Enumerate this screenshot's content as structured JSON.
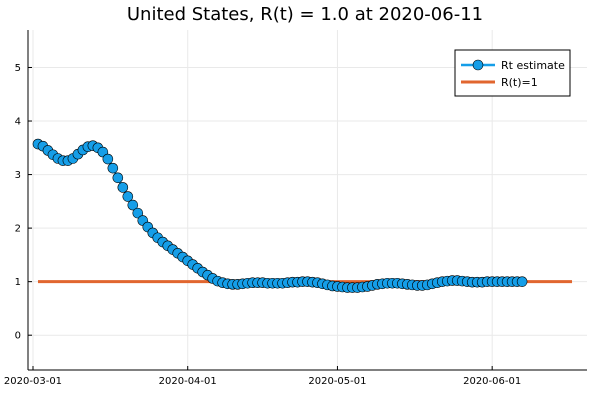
{
  "chart_data": {
    "type": "line",
    "title": "United States, R(t) = 1.0 at 2020-06-11",
    "xlabel": "",
    "ylabel": "",
    "x_axis": {
      "type": "date",
      "range": [
        "2020-02-29",
        "2020-06-20"
      ],
      "ticks": [
        "2020-03-01",
        "2020-04-01",
        "2020-05-01",
        "2020-06-01"
      ]
    },
    "y_axis": {
      "range": [
        -0.65,
        5.7
      ],
      "ticks": [
        0,
        1,
        2,
        3,
        4,
        5
      ]
    },
    "grid": true,
    "legend_position": "top-right",
    "series": [
      {
        "name": "Rt estimate",
        "color": "#159ee8",
        "marker": "circle",
        "start_date": "2020-03-02",
        "step_days": 1,
        "values": [
          3.57,
          3.53,
          3.45,
          3.37,
          3.3,
          3.26,
          3.26,
          3.3,
          3.38,
          3.46,
          3.52,
          3.54,
          3.5,
          3.42,
          3.29,
          3.12,
          2.94,
          2.76,
          2.59,
          2.43,
          2.28,
          2.14,
          2.02,
          1.91,
          1.82,
          1.74,
          1.67,
          1.6,
          1.53,
          1.46,
          1.39,
          1.32,
          1.25,
          1.18,
          1.12,
          1.06,
          1.01,
          0.98,
          0.96,
          0.95,
          0.95,
          0.96,
          0.97,
          0.98,
          0.98,
          0.98,
          0.97,
          0.97,
          0.97,
          0.97,
          0.98,
          0.99,
          0.99,
          1.0,
          1.0,
          0.99,
          0.98,
          0.96,
          0.94,
          0.92,
          0.91,
          0.9,
          0.89,
          0.89,
          0.89,
          0.9,
          0.91,
          0.93,
          0.95,
          0.96,
          0.97,
          0.97,
          0.97,
          0.96,
          0.95,
          0.94,
          0.93,
          0.93,
          0.94,
          0.96,
          0.98,
          1.0,
          1.01,
          1.02,
          1.02,
          1.01,
          1.0,
          0.99,
          0.99,
          0.99,
          1.0,
          1.0,
          1.0,
          1.0,
          1.0,
          1.0,
          1.0,
          1.0
        ]
      },
      {
        "name": "R(t)=1",
        "color": "#e1662f",
        "marker": "none",
        "x": [
          "2020-03-02",
          "2020-06-17"
        ],
        "values": [
          1,
          1
        ]
      }
    ]
  }
}
